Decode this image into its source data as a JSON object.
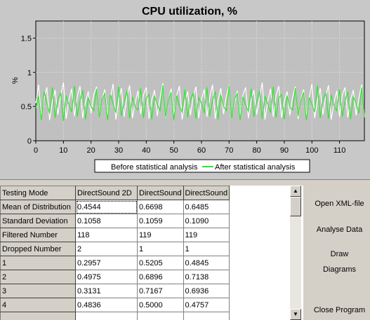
{
  "chart_data": {
    "type": "line",
    "title": "CPU utilization, %",
    "xlabel": "",
    "ylabel": "%",
    "xlim": [
      0,
      119
    ],
    "ylim": [
      0,
      1.75
    ],
    "x_ticks": [
      0,
      10,
      20,
      30,
      40,
      50,
      60,
      70,
      80,
      90,
      100,
      110
    ],
    "y_ticks": [
      0,
      0.5,
      1,
      1.5
    ],
    "grid": true,
    "legend": "bottom-center",
    "series": [
      {
        "name": "Before statistical analysis",
        "color": "#ffffff",
        "values": [
          0.55,
          0.82,
          0.35,
          0.62,
          0.78,
          0.3,
          0.58,
          0.74,
          0.38,
          0.66,
          0.85,
          0.32,
          0.6,
          0.76,
          0.36,
          0.64,
          0.8,
          0.33,
          0.57,
          0.72,
          0.4,
          0.68,
          0.79,
          0.34,
          0.61,
          0.75,
          0.37,
          0.63,
          0.83,
          0.31,
          0.59,
          0.77,
          0.35,
          0.65,
          0.81,
          0.33,
          0.56,
          0.73,
          0.39,
          0.67,
          0.78,
          0.32,
          0.6,
          0.74,
          0.36,
          0.62,
          0.84,
          0.34,
          0.58,
          0.76,
          0.38,
          0.66,
          0.8,
          0.31,
          0.57,
          0.72,
          0.37,
          0.64,
          0.79,
          0.33,
          0.61,
          0.75,
          0.35,
          0.63,
          0.82,
          0.32,
          0.59,
          0.77,
          0.39,
          0.65,
          0.81,
          0.34,
          0.56,
          0.73,
          0.36,
          0.67,
          0.78,
          0.33,
          0.6,
          0.74,
          0.38,
          0.62,
          0.85,
          0.31,
          0.58,
          0.76,
          0.35,
          0.66,
          0.8,
          0.34,
          0.57,
          0.72,
          0.37,
          0.64,
          0.79,
          0.32,
          0.61,
          0.75,
          0.36,
          0.63,
          0.83,
          0.33,
          0.59,
          0.77,
          0.38,
          0.65,
          0.81,
          0.31,
          0.56,
          0.73,
          0.35,
          0.67,
          0.78,
          0.34,
          0.6,
          0.74,
          0.37,
          0.62,
          0.82,
          0.36
        ]
      },
      {
        "name": "After statistical analysis",
        "color": "#2ee82e",
        "values": [
          0.48,
          0.65,
          0.3,
          0.72,
          0.55,
          0.4,
          0.78,
          0.33,
          0.6,
          0.7,
          0.29,
          0.66,
          0.52,
          0.42,
          0.8,
          0.35,
          0.58,
          0.74,
          0.31,
          0.63,
          0.5,
          0.44,
          0.76,
          0.34,
          0.61,
          0.69,
          0.3,
          0.67,
          0.54,
          0.41,
          0.79,
          0.36,
          0.57,
          0.73,
          0.32,
          0.64,
          0.49,
          0.45,
          0.77,
          0.33,
          0.62,
          0.68,
          0.31,
          0.65,
          0.53,
          0.43,
          0.81,
          0.35,
          0.59,
          0.71,
          0.3,
          0.66,
          0.51,
          0.42,
          0.75,
          0.34,
          0.6,
          0.7,
          0.32,
          0.63,
          0.55,
          0.4,
          0.78,
          0.36,
          0.58,
          0.72,
          0.31,
          0.67,
          0.5,
          0.44,
          0.8,
          0.33,
          0.61,
          0.69,
          0.3,
          0.64,
          0.52,
          0.43,
          0.76,
          0.35,
          0.57,
          0.73,
          0.32,
          0.65,
          0.54,
          0.41,
          0.79,
          0.34,
          0.62,
          0.68,
          0.31,
          0.66,
          0.49,
          0.45,
          0.77,
          0.36,
          0.59,
          0.71,
          0.3,
          0.63,
          0.53,
          0.42,
          0.81,
          0.33,
          0.6,
          0.7,
          0.32,
          0.67,
          0.51,
          0.44,
          0.75,
          0.35,
          0.58,
          0.72,
          0.31,
          0.64,
          0.55,
          0.4,
          0.78,
          0.34
        ]
      }
    ]
  },
  "grid": {
    "headers": [
      "Testing Mode",
      "DirectSound 2D",
      "DirectSound",
      "DirectSound"
    ],
    "rows": [
      {
        "label": "Mean of Distribution",
        "cells": [
          "0.4544",
          "0.6698",
          "0.6485"
        ]
      },
      {
        "label": "Standard Deviation",
        "cells": [
          "0.1058",
          "0.1059",
          "0.1090"
        ]
      },
      {
        "label": "Filtered Number",
        "cells": [
          "118",
          "119",
          "119"
        ]
      },
      {
        "label": "Dropped Number",
        "cells": [
          "2",
          "1",
          "1"
        ]
      },
      {
        "label": "1",
        "cells": [
          "0.2957",
          "0.5205",
          "0.4845"
        ]
      },
      {
        "label": "2",
        "cells": [
          "0.4975",
          "0.6896",
          "0.7138"
        ]
      },
      {
        "label": "3",
        "cells": [
          "0.3131",
          "0.7167",
          "0.6936"
        ]
      },
      {
        "label": "4",
        "cells": [
          "0.4836",
          "0.5000",
          "0.4757"
        ]
      },
      {
        "label": "",
        "cells": [
          "",
          "",
          ""
        ]
      }
    ]
  },
  "scrollbar": {
    "up_icon": "arrow-up-icon",
    "down_icon": "arrow-down-icon"
  },
  "buttons": {
    "open_xml": "Open XML-file",
    "analyse": "Analyse Data",
    "draw": "Draw Diagrams",
    "close": "Close Program"
  }
}
